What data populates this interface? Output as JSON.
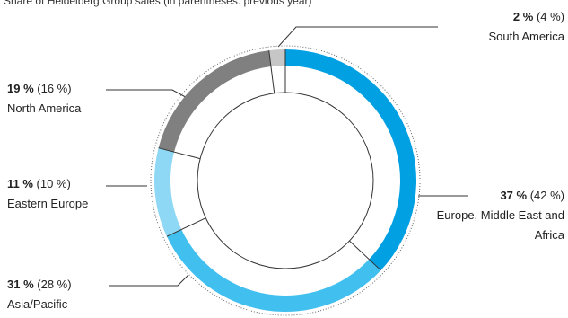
{
  "chart_data": {
    "type": "donut",
    "title": "Share of Heidelberg Group sales (in parentheses: previous year)",
    "categories": [
      "Europe, Middle East and Africa",
      "Asia/Pacific",
      "Eastern Europe",
      "North America",
      "South America"
    ],
    "values": [
      37,
      31,
      11,
      19,
      2
    ],
    "value_labels": [
      "37 %",
      "31 %",
      "11 %",
      "19 %",
      "2 %"
    ],
    "previous_year_labels": [
      "(42 %)",
      "(28 %)",
      "(10 %)",
      "(16 %)",
      "(4 %)"
    ],
    "colors": [
      "#00a0e3",
      "#41c0f0",
      "#8fd8f5",
      "#808080",
      "#c6c6c6"
    ]
  }
}
